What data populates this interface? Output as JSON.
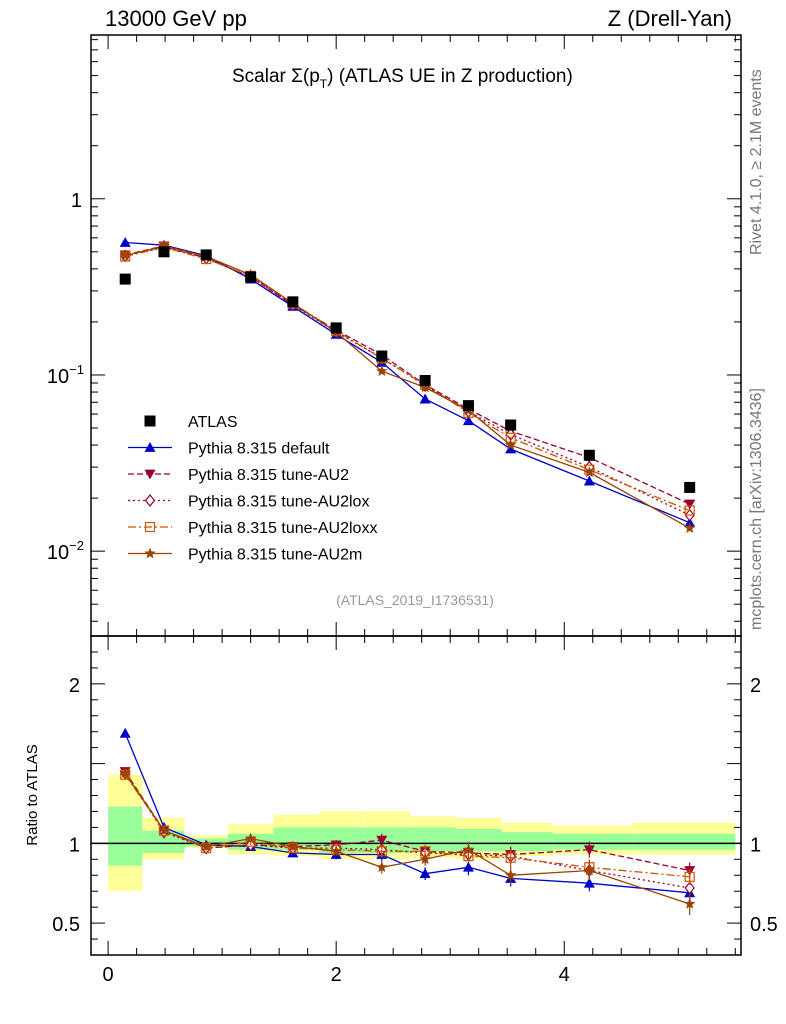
{
  "header": {
    "left": "13000 GeV pp",
    "right": "Z (Drell-Yan)"
  },
  "side_labels": {
    "rivet": "Rivet 4.1.0, ≥ 2.1M events",
    "mcplots": "mcplots.cern.ch [arXiv:1306.3436]"
  },
  "chart_data": {
    "type": "scatter",
    "title": "Scalar Σ(pT) (ATLAS UE in Z production)",
    "title_prefix": "Scalar Σ(p",
    "title_sub": "T",
    "title_suffix": ") (ATLAS UE in Z production)",
    "analysis_label": "(ATLAS_2019_I1736531)",
    "main_axis": {
      "scale": "log",
      "ylim": [
        0.0033,
        8.5
      ],
      "tick_labels": [
        {
          "value": 1,
          "label": "1",
          "sup": ""
        },
        {
          "value": 0.1,
          "label": "10",
          "sup": "−1"
        },
        {
          "value": 0.01,
          "label": "10",
          "sup": "−2"
        }
      ]
    },
    "ratio_axis": {
      "ylabel": "Ratio to ATLAS",
      "ylim": [
        0.3,
        2.3
      ],
      "tick_labels": [
        {
          "value": 2,
          "label": "2"
        },
        {
          "value": 1,
          "label": "1"
        },
        {
          "value": 0.5,
          "label": "0.5"
        }
      ]
    },
    "x_axis": {
      "xlim": [
        -0.15,
        5.55
      ],
      "tick_labels": [
        {
          "value": 0,
          "label": "0"
        },
        {
          "value": 2,
          "label": "2"
        },
        {
          "value": 4,
          "label": "4"
        }
      ]
    },
    "bin_edges": [
      0.0,
      0.3,
      0.67,
      1.05,
      1.45,
      1.85,
      2.25,
      2.65,
      3.05,
      3.45,
      3.9,
      4.6,
      5.5
    ],
    "x": [
      0.15,
      0.49,
      0.86,
      1.25,
      1.62,
      2.0,
      2.4,
      2.78,
      3.16,
      3.53,
      4.22,
      5.1
    ],
    "data": {
      "name": "ATLAS",
      "color": "#000000",
      "values": [
        0.35,
        0.5,
        0.48,
        0.36,
        0.26,
        0.185,
        0.128,
        0.093,
        0.067,
        0.052,
        0.035,
        0.023
      ],
      "band_inner": [
        [
          0.86,
          1.23
        ],
        [
          0.94,
          1.08
        ],
        [
          0.98,
          1.03
        ],
        [
          0.96,
          1.06
        ],
        [
          0.96,
          1.1
        ],
        [
          0.94,
          1.1
        ],
        [
          0.94,
          1.1
        ],
        [
          0.95,
          1.1
        ],
        [
          0.95,
          1.09
        ],
        [
          0.95,
          1.07
        ],
        [
          0.96,
          1.06
        ],
        [
          0.96,
          1.06
        ]
      ],
      "band_outer": [
        [
          0.7,
          1.43
        ],
        [
          0.9,
          1.16
        ],
        [
          0.97,
          1.05
        ],
        [
          0.93,
          1.12
        ],
        [
          0.92,
          1.18
        ],
        [
          0.9,
          1.2
        ],
        [
          0.9,
          1.2
        ],
        [
          0.91,
          1.17
        ],
        [
          0.9,
          1.16
        ],
        [
          0.92,
          1.13
        ],
        [
          0.93,
          1.11
        ],
        [
          0.93,
          1.13
        ]
      ]
    },
    "series": [
      {
        "name": "Pythia 8.315 default",
        "color": "#0000cc",
        "marker": "triangle-up",
        "dash": "",
        "values": [
          0.565,
          0.545,
          0.475,
          0.35,
          0.245,
          0.17,
          0.118,
          0.073,
          0.055,
          0.038,
          0.025,
          0.0145
        ],
        "ratio": [
          1.69,
          1.1,
          0.99,
          0.98,
          0.94,
          0.93,
          0.93,
          0.81,
          0.85,
          0.78,
          0.75,
          0.69
        ],
        "ratio_err": [
          0.0,
          0.02,
          0.02,
          0.02,
          0.02,
          0.03,
          0.04,
          0.04,
          0.05,
          0.05,
          0.05,
          0.05
        ]
      },
      {
        "name": "Pythia 8.315 tune-AU2",
        "color": "#990033",
        "marker": "triangle-down",
        "dash": "6,3",
        "values": [
          0.48,
          0.54,
          0.46,
          0.36,
          0.25,
          0.18,
          0.13,
          0.088,
          0.064,
          0.048,
          0.034,
          0.0185
        ],
        "ratio": [
          1.45,
          1.08,
          0.97,
          0.99,
          0.98,
          0.99,
          1.02,
          0.95,
          0.94,
          0.93,
          0.96,
          0.83
        ],
        "ratio_err": [
          0.02,
          0.02,
          0.02,
          0.02,
          0.02,
          0.03,
          0.04,
          0.04,
          0.04,
          0.05,
          0.05,
          0.05
        ]
      },
      {
        "name": "Pythia 8.315 tune-AU2lox",
        "color": "#990033",
        "marker": "diamond",
        "dash": "2,3",
        "values": [
          0.475,
          0.53,
          0.46,
          0.36,
          0.25,
          0.175,
          0.125,
          0.087,
          0.062,
          0.046,
          0.03,
          0.016
        ],
        "ratio": [
          1.44,
          1.07,
          0.97,
          0.99,
          0.97,
          0.97,
          0.96,
          0.94,
          0.93,
          0.92,
          0.83,
          0.72
        ],
        "ratio_err": [
          0.02,
          0.02,
          0.02,
          0.02,
          0.02,
          0.03,
          0.04,
          0.04,
          0.04,
          0.05,
          0.05,
          0.05
        ]
      },
      {
        "name": "Pythia 8.315 tune-AU2loxx",
        "color": "#cc5500",
        "marker": "square-open",
        "dash": "8,3,2,3",
        "values": [
          0.47,
          0.53,
          0.455,
          0.365,
          0.255,
          0.178,
          0.124,
          0.088,
          0.061,
          0.044,
          0.029,
          0.017
        ],
        "ratio": [
          1.43,
          1.08,
          0.97,
          1.01,
          0.97,
          0.96,
          0.95,
          0.95,
          0.92,
          0.91,
          0.85,
          0.79
        ],
        "ratio_err": [
          0.02,
          0.02,
          0.02,
          0.02,
          0.02,
          0.03,
          0.04,
          0.04,
          0.04,
          0.05,
          0.05,
          0.05
        ]
      },
      {
        "name": "Pythia 8.315 tune-AU2m",
        "color": "#994400",
        "marker": "star",
        "dash": "",
        "values": [
          0.475,
          0.54,
          0.47,
          0.37,
          0.255,
          0.175,
          0.105,
          0.085,
          0.063,
          0.04,
          0.028,
          0.0135
        ],
        "ratio": [
          1.44,
          1.08,
          0.98,
          1.03,
          0.98,
          0.95,
          0.85,
          0.9,
          0.96,
          0.8,
          0.83,
          0.62
        ],
        "ratio_err": [
          0.02,
          0.02,
          0.02,
          0.02,
          0.02,
          0.03,
          0.04,
          0.04,
          0.05,
          0.06,
          0.06,
          0.07
        ]
      }
    ]
  }
}
